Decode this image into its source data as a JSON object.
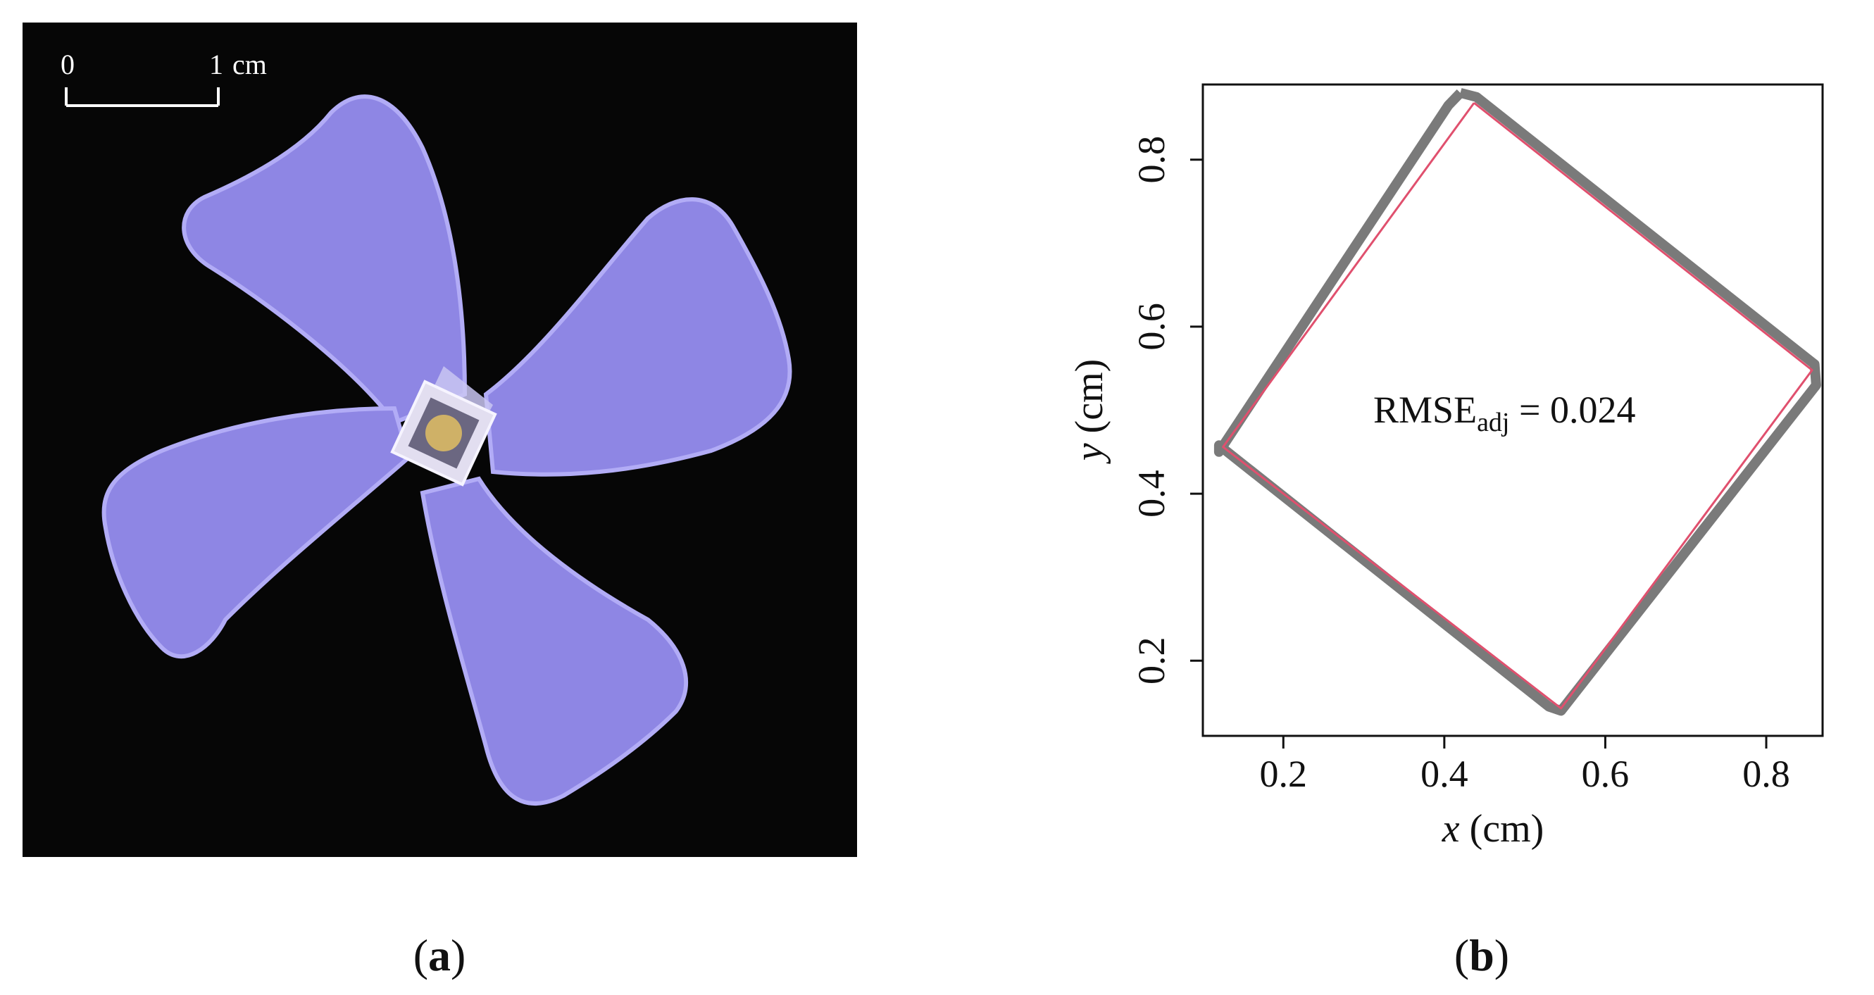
{
  "panel_a": {
    "scale_bar": {
      "start_label": "0",
      "end_label": "1",
      "unit_label": "cm"
    },
    "caption_letter": "a",
    "colors": {
      "background": "#060606",
      "petal": "#8e86e4",
      "petal_edge": "#b2acf6",
      "center_ring": "#e2def0",
      "center_dot": "#cfb167"
    }
  },
  "panel_b": {
    "caption_letter": "b",
    "annotation": {
      "prefix": "RMSE",
      "subscript": "adj",
      "suffix": " = 0.024"
    },
    "colors": {
      "observed": "#7a7a7a",
      "fitted": "#e0506e",
      "axis": "#111111"
    }
  },
  "chart_data": {
    "type": "line",
    "xlabel": {
      "var": "x",
      "unit": " (cm)"
    },
    "ylabel": {
      "var": "y",
      "unit": " (cm)"
    },
    "xlim": [
      0.1,
      0.87
    ],
    "ylim": [
      0.11,
      0.89
    ],
    "x_ticks": [
      0.2,
      0.4,
      0.6,
      0.8
    ],
    "y_ticks": [
      0.2,
      0.4,
      0.6,
      0.8
    ],
    "x_tick_labels": [
      "0.2",
      "0.4",
      "0.6",
      "0.8"
    ],
    "y_tick_labels": [
      "0.2",
      "0.4",
      "0.6",
      "0.8"
    ],
    "grid": false,
    "legend": "none",
    "series": [
      {
        "role": "observed",
        "points": [
          [
            0.42,
            0.88
          ],
          [
            0.44,
            0.875
          ],
          [
            0.86,
            0.555
          ],
          [
            0.862,
            0.53
          ],
          [
            0.545,
            0.14
          ],
          [
            0.53,
            0.145
          ],
          [
            0.12,
            0.458
          ],
          [
            0.12,
            0.45
          ],
          [
            0.405,
            0.865
          ],
          [
            0.42,
            0.88
          ]
        ]
      },
      {
        "role": "fitted",
        "points": [
          [
            0.437,
            0.868
          ],
          [
            0.857,
            0.548
          ],
          [
            0.545,
            0.143
          ],
          [
            0.125,
            0.456
          ],
          [
            0.437,
            0.868
          ]
        ]
      }
    ]
  }
}
